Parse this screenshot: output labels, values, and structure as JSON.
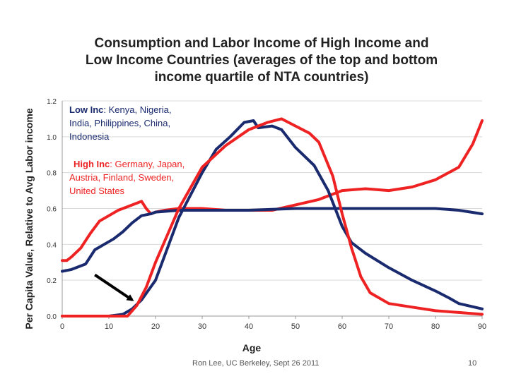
{
  "slide": {
    "title_lines": [
      "Consumption and Labor Income of High Income and",
      "Low Income Countries (averages of the top and bottom",
      "income quartile of NTA countries)"
    ],
    "footer_credit": "Ron Lee, UC Berkeley, Sept 26 2011",
    "page_number": "10"
  },
  "chart_data": {
    "type": "line",
    "xlabel": "Age",
    "ylabel": "Per Capita Value, Relative to Avg Labor income",
    "xlim": [
      0,
      90
    ],
    "ylim": [
      0,
      1.2
    ],
    "x_ticks": [
      0,
      10,
      20,
      30,
      40,
      50,
      60,
      70,
      80,
      90
    ],
    "y_ticks": [
      "0.0",
      "0.2",
      "0.4",
      "0.6",
      "0.8",
      "1.0",
      "1.2"
    ],
    "grid": true,
    "colors": {
      "low_income": "#ee2222",
      "high_income": "#1a2a6e"
    },
    "annotations": [
      {
        "label": "Low Inc",
        "text": ": Kenya, Nigeria, India, Philippines, China, Indonesia",
        "color": "#1a2a6e"
      },
      {
        "label": "High Inc",
        "text": ": Germany, Japan, Austria, Finland, Sweden, United States",
        "color": "#ee2222"
      }
    ],
    "arrow": {
      "from": [
        7,
        0.23
      ],
      "to": [
        15,
        0.09
      ]
    },
    "series": [
      {
        "key": "hi_consumption",
        "color": "#ee2222",
        "x": [
          0,
          1,
          2,
          4,
          6,
          8,
          10,
          12,
          14,
          16,
          17,
          18,
          19,
          20,
          22,
          25,
          30,
          35,
          40,
          45,
          50,
          55,
          60,
          65,
          70,
          75,
          80,
          85,
          88,
          90
        ],
        "y": [
          0.31,
          0.31,
          0.33,
          0.38,
          0.46,
          0.53,
          0.56,
          0.59,
          0.61,
          0.63,
          0.64,
          0.6,
          0.57,
          0.58,
          0.59,
          0.6,
          0.6,
          0.59,
          0.59,
          0.59,
          0.62,
          0.65,
          0.7,
          0.71,
          0.7,
          0.72,
          0.76,
          0.83,
          0.96,
          1.09
        ]
      },
      {
        "key": "lo_consumption",
        "color": "#1a2a6e",
        "x": [
          0,
          2,
          5,
          7,
          9,
          11,
          13,
          15,
          17,
          19,
          20,
          25,
          30,
          40,
          50,
          60,
          63,
          70,
          80,
          85,
          90
        ],
        "y": [
          0.25,
          0.26,
          0.29,
          0.37,
          0.4,
          0.43,
          0.47,
          0.52,
          0.56,
          0.57,
          0.58,
          0.59,
          0.59,
          0.59,
          0.6,
          0.6,
          0.6,
          0.6,
          0.6,
          0.59,
          0.57
        ]
      },
      {
        "key": "lo_labor",
        "color": "#1a2a6e",
        "x": [
          0,
          10,
          13,
          15,
          17,
          20,
          25,
          30,
          33,
          36,
          39,
          41,
          42,
          45,
          47,
          50,
          54,
          57,
          60,
          62,
          65,
          70,
          75,
          80,
          83,
          85,
          90
        ],
        "y": [
          0.0,
          0.0,
          0.01,
          0.04,
          0.09,
          0.2,
          0.55,
          0.8,
          0.93,
          1.0,
          1.08,
          1.09,
          1.05,
          1.06,
          1.04,
          0.94,
          0.84,
          0.7,
          0.5,
          0.41,
          0.35,
          0.27,
          0.2,
          0.14,
          0.1,
          0.07,
          0.04
        ]
      },
      {
        "key": "hi_labor",
        "color": "#ee2222",
        "x": [
          0,
          14,
          16,
          18,
          20,
          25,
          30,
          35,
          40,
          44,
          47,
          50,
          53,
          55,
          58,
          60,
          62,
          64,
          66,
          70,
          75,
          80,
          85,
          90
        ],
        "y": [
          0.0,
          0.0,
          0.06,
          0.16,
          0.3,
          0.6,
          0.83,
          0.95,
          1.04,
          1.08,
          1.1,
          1.06,
          1.02,
          0.97,
          0.78,
          0.57,
          0.38,
          0.22,
          0.13,
          0.07,
          0.05,
          0.03,
          0.02,
          0.01
        ]
      }
    ]
  }
}
